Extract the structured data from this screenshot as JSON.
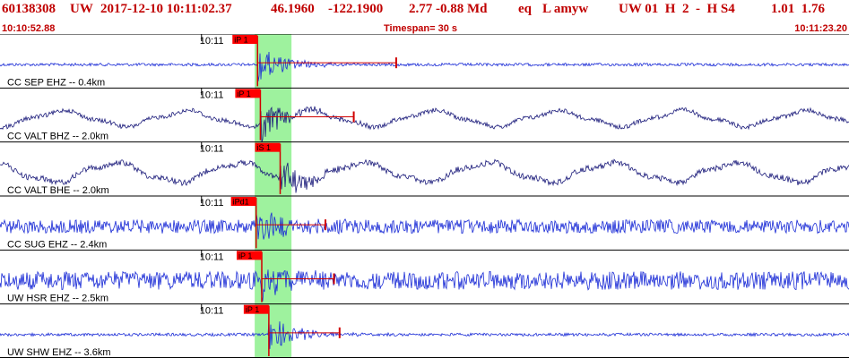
{
  "header": {
    "event_id": "60138308",
    "network": "UW",
    "datetime": "2017-12-10 10:11:02.37",
    "lat": "46.1960",
    "lon": "-122.1900",
    "mag_info": "2.77 -0.88 Md",
    "type": "eq",
    "flags": "L amyw",
    "extra": "UW 01  H  2  -  H S4",
    "trailing": "1.01  1.76"
  },
  "timebar": {
    "start": "10:10:52.88",
    "timespan": "Timespan=  30 s",
    "end": "10:11:23.20"
  },
  "chart_data": {
    "type": "line",
    "title": "",
    "x_unit": "s",
    "timespan_s": 30,
    "tick_label": "10:11",
    "tick_time_s": 7.12,
    "pick_window_s": [
      9.0,
      10.3
    ],
    "traces": [
      {
        "label": "CC SEP EHZ -- 0.4km",
        "pick_label": "iP 1",
        "pick_s": 9.1,
        "coda_s": 14.0,
        "color": "#1a2bd6",
        "amp": 0.35,
        "style": "quiet"
      },
      {
        "label": "CC VALT BHZ -- 2.0km",
        "pick_label": "iP 1",
        "pick_s": 9.2,
        "coda_s": 12.5,
        "color": "#1a1a7a",
        "amp": 0.55,
        "style": "wavy"
      },
      {
        "label": "CC VALT BHE -- 2.0km",
        "pick_label": "iS 1",
        "pick_s": 9.9,
        "coda_s": 0,
        "color": "#1a1a7a",
        "amp": 0.7,
        "style": "wavy"
      },
      {
        "label": "CC SUG EHZ -- 2.4km",
        "pick_label": "iPd1",
        "pick_s": 9.05,
        "coda_s": 11.5,
        "color": "#1a2bd6",
        "amp": 0.45,
        "style": "noisy"
      },
      {
        "label": "UW HSR EHZ -- 2.5km",
        "pick_label": "iP 1",
        "pick_s": 9.25,
        "coda_s": 11.8,
        "color": "#1a2bd6",
        "amp": 0.6,
        "style": "noisy"
      },
      {
        "label": "UW SHW EHZ -- 3.6km",
        "pick_label": "iP 1",
        "pick_s": 9.5,
        "coda_s": 12.0,
        "color": "#1a2bd6",
        "amp": 0.35,
        "style": "quiet"
      }
    ]
  }
}
